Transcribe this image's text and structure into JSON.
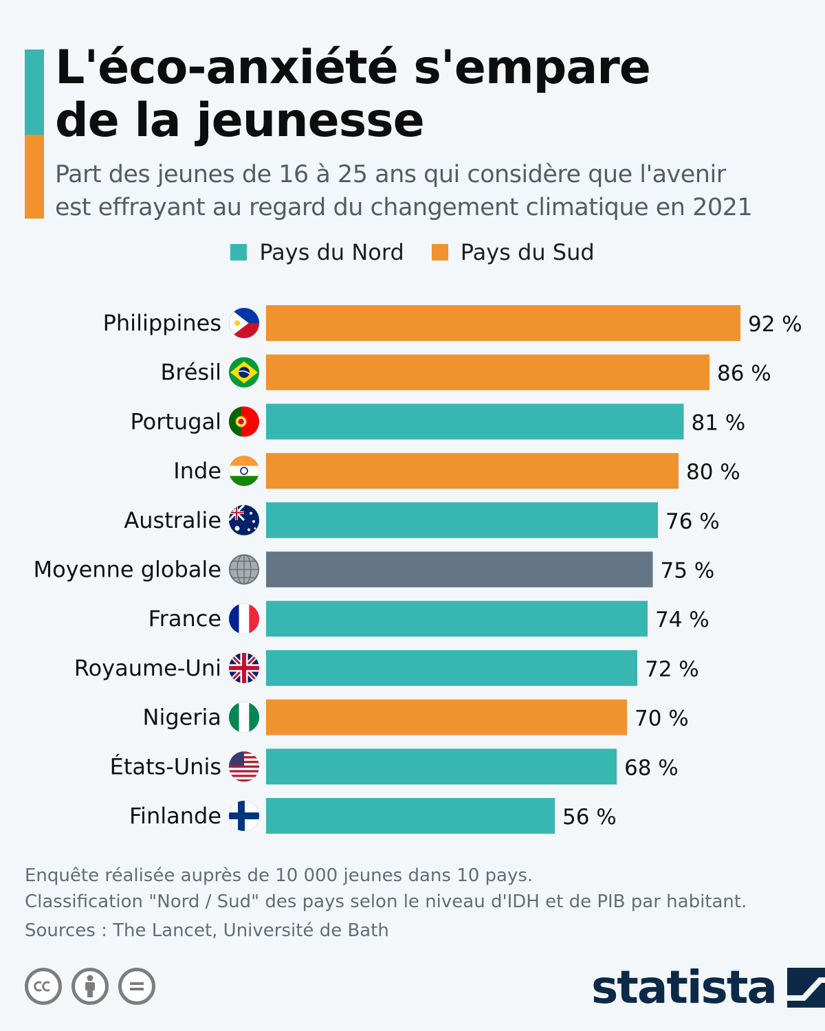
{
  "title": "L'éco-anxiété s'empare de la jeunesse",
  "title_line1": "L'éco-anxiété s'empare",
  "title_line2": "de la jeunesse",
  "subtitle_line1": "Part des jeunes de 16 à 25 ans qui considère que l'avenir",
  "subtitle_line2": "est effrayant au regard du changement climatique en 2021",
  "colors": {
    "nord": "#38b6b2",
    "sud": "#f0932e",
    "global": "#647685",
    "accent_teal": "#38b6b2",
    "accent_orange": "#f0932e",
    "brand": "#0c2a48"
  },
  "legend": [
    {
      "label": "Pays du Nord",
      "color": "#38b6b2"
    },
    {
      "label": "Pays du Sud",
      "color": "#f0932e"
    }
  ],
  "chart_data": {
    "type": "bar",
    "orientation": "horizontal",
    "categories": [
      "Philippines",
      "Brésil",
      "Portugal",
      "Inde",
      "Australie",
      "Moyenne globale",
      "France",
      "Royaume-Uni",
      "Nigeria",
      "États-Unis",
      "Finlande"
    ],
    "values": [
      92,
      86,
      81,
      80,
      76,
      75,
      74,
      72,
      70,
      68,
      56
    ],
    "value_labels": [
      "92 %",
      "86 %",
      "81 %",
      "80 %",
      "76 %",
      "75 %",
      "74 %",
      "72 %",
      "70 %",
      "68 %",
      "56 %"
    ],
    "groups": [
      "sud",
      "sud",
      "nord",
      "sud",
      "nord",
      "global",
      "nord",
      "nord",
      "sud",
      "nord",
      "nord"
    ],
    "flags": [
      "philippines-flag-icon",
      "brazil-flag-icon",
      "portugal-flag-icon",
      "india-flag-icon",
      "australia-flag-icon",
      "globe-icon",
      "france-flag-icon",
      "uk-flag-icon",
      "nigeria-flag-icon",
      "usa-flag-icon",
      "finland-flag-icon"
    ],
    "series": [
      {
        "name": "Pays du Nord",
        "color": "#38b6b2"
      },
      {
        "name": "Pays du Sud",
        "color": "#f0932e"
      }
    ],
    "unit": "%",
    "xlim": [
      0,
      100
    ],
    "grid": false,
    "legend_position": "top-center"
  },
  "footer": {
    "note1": "Enquête réalisée auprès de 10 000 jeunes dans 10 pays.",
    "note2": "Classification \"Nord / Sud\" des pays selon le niveau d'IDH et de PIB par habitant.",
    "sources": "Sources : The Lancet, Université de Bath"
  },
  "license_icons": [
    "cc-icon",
    "by-icon",
    "nd-icon"
  ],
  "brand": {
    "name": "statista"
  }
}
